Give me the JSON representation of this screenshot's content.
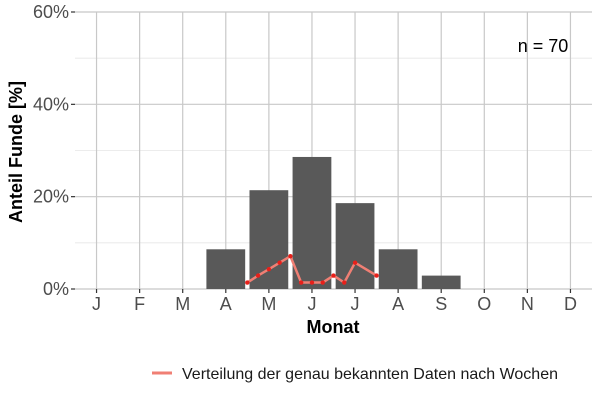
{
  "chart_data": {
    "type": "bar",
    "xlabel": "Monat",
    "ylabel": "Anteil Funde [%]",
    "ylim": [
      0,
      60
    ],
    "y_ticks": [
      "0%",
      "20%",
      "40%",
      "60%"
    ],
    "y_tick_values": [
      0,
      20,
      40,
      60
    ],
    "grid": true,
    "categories": [
      "J",
      "F",
      "M",
      "A",
      "M",
      "J",
      "J",
      "A",
      "S",
      "O",
      "N",
      "D"
    ],
    "values": [
      0,
      0,
      0,
      8.6,
      21.4,
      28.6,
      18.6,
      8.6,
      2.9,
      0,
      0,
      0
    ],
    "bar_color": "#595959",
    "annotation": "n = 70",
    "line_series": {
      "name": "Verteilung der genau bekannten Daten nach Wochen",
      "color": "#f07f74",
      "point_color": "#e8201a",
      "x": [
        4.5,
        4.75,
        5.0,
        5.25,
        5.5,
        5.75,
        6.0,
        6.25,
        6.5,
        6.75,
        7.0,
        7.5
      ],
      "y": [
        1.4,
        2.9,
        4.3,
        5.7,
        7.1,
        1.4,
        1.4,
        1.4,
        2.9,
        1.4,
        5.7,
        2.9
      ]
    },
    "legend_position": "bottom"
  }
}
